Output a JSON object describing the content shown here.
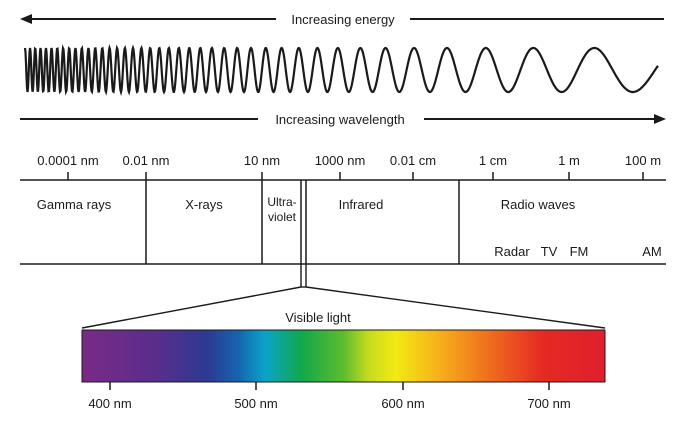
{
  "energy_label": "Increasing energy",
  "wavelength_label": "Increasing wavelength",
  "scale_ticks": [
    "0.0001 nm",
    "0.01 nm",
    "10 nm",
    "1000 nm",
    "0.01 cm",
    "1 cm",
    "1 m",
    "100 m"
  ],
  "bands": {
    "gamma": "Gamma rays",
    "xrays": "X-rays",
    "ultraviolet_line1": "Ultra-",
    "ultraviolet_line2": "violet",
    "infrared": "Infrared",
    "radio": "Radio waves"
  },
  "radio_subbands": [
    "Radar",
    "TV",
    "FM",
    "AM"
  ],
  "visible": {
    "title": "Visible light",
    "ticks": [
      "400 nm",
      "500 nm",
      "600 nm",
      "700 nm"
    ]
  },
  "colors": {
    "line": "#1a1a1a",
    "spectrum": [
      "#7a2a86",
      "#5a2d8c",
      "#2c3a92",
      "#1565b0",
      "#0aa4c8",
      "#12a84a",
      "#5cbc2e",
      "#c9dc1e",
      "#f2ea12",
      "#f6b21a",
      "#ef6d1f",
      "#e52a22",
      "#e11f2e"
    ]
  }
}
